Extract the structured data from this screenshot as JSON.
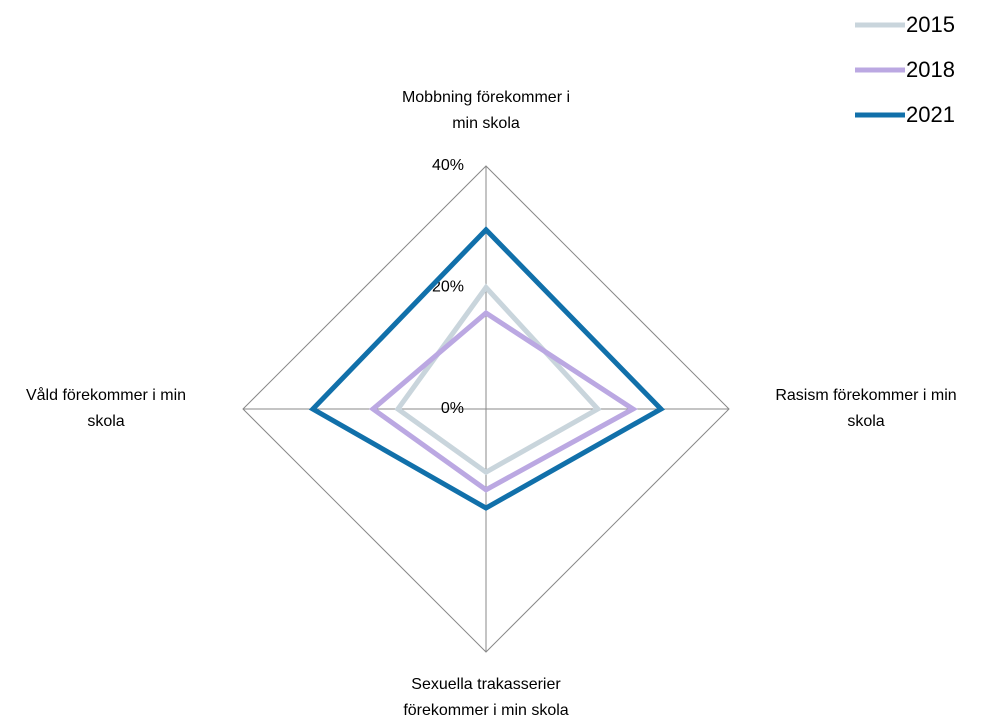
{
  "chart_data": {
    "type": "radar",
    "categories": [
      [
        "Mobbning förekommer i",
        "min skola"
      ],
      [
        "Rasism förekommer i min",
        "skola"
      ],
      [
        "Sexuella trakasserier",
        "förekommer i min skola"
      ],
      [
        "Våld förekommer i min",
        "skola"
      ]
    ],
    "series": [
      {
        "name": "2015",
        "color": "#c9d5dc",
        "values": [
          20,
          18.4,
          10.4,
          14.5
        ]
      },
      {
        "name": "2018",
        "color": "#bba8e2",
        "values": [
          15.8,
          24.2,
          13.3,
          18.6
        ]
      },
      {
        "name": "2021",
        "color": "#1170aa",
        "values": [
          29.5,
          28.8,
          16.3,
          28.5
        ]
      }
    ],
    "ylim": [
      0,
      40
    ],
    "yticks": [
      {
        "value": 0,
        "label": "0%"
      },
      {
        "value": 20,
        "label": "20%"
      },
      {
        "value": 40,
        "label": "40%"
      }
    ],
    "legend": "top-right"
  }
}
